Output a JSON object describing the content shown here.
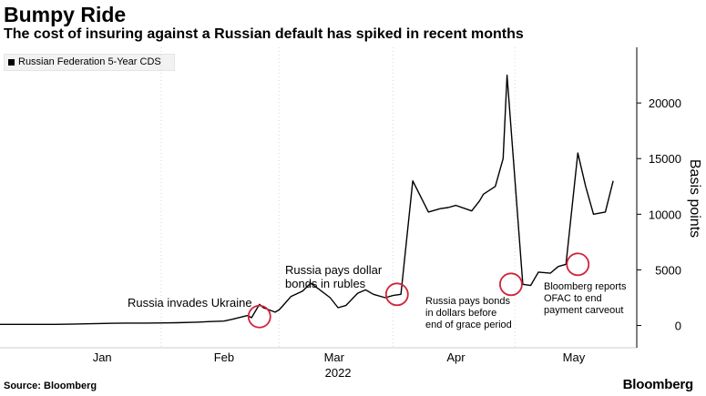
{
  "title": "Bumpy Ride",
  "subtitle": "The cost of insuring against a Russian default has spiked in recent months",
  "footer": {
    "source": "Source: Bloomberg",
    "logo": "Bloomberg"
  },
  "colors": {
    "line": "#000000",
    "highlight": "#d0243a",
    "grid": "#d8d8d8",
    "legend_bg": "#f2f2f2"
  },
  "chart_data": {
    "type": "line",
    "title": "Bumpy Ride",
    "subtitle": "The cost of insuring against a Russian default has spiked in recent months",
    "ylabel": "Basis points",
    "xlabel": "",
    "ylim": [
      -2000,
      25000
    ],
    "y_axis_side": "right",
    "yticks": [
      0,
      5000,
      10000,
      15000,
      20000
    ],
    "ytick_labels": [
      "0",
      "5000",
      "10000",
      "15000",
      "20000"
    ],
    "x_tick_labels": [
      {
        "label": "Jan",
        "date": "2022-01-15"
      },
      {
        "label": "Feb",
        "date": "2022-02-15"
      },
      {
        "label": "Mar",
        "date": "2022-03-15"
      },
      {
        "label": "Apr",
        "date": "2022-04-15"
      },
      {
        "label": "May",
        "date": "2022-05-15"
      }
    ],
    "year_label": "2022",
    "xlim": [
      "2021-12-20",
      "2022-05-31"
    ],
    "grid": "vertical",
    "legend": {
      "position": "top-left",
      "entries": [
        "Russian Federation 5-Year CDS"
      ]
    },
    "series": [
      {
        "name": "Russian Federation 5-Year CDS",
        "x": [
          "2021-12-20",
          "2021-12-27",
          "2022-01-03",
          "2022-01-07",
          "2022-01-11",
          "2022-01-14",
          "2022-01-18",
          "2022-01-21",
          "2022-01-26",
          "2022-01-31",
          "2022-02-03",
          "2022-02-08",
          "2022-02-11",
          "2022-02-15",
          "2022-02-17",
          "2022-02-21",
          "2022-02-22",
          "2022-02-24",
          "2022-02-25",
          "2022-02-28",
          "2022-03-01",
          "2022-03-02",
          "2022-03-04",
          "2022-03-07",
          "2022-03-09",
          "2022-03-11",
          "2022-03-14",
          "2022-03-16",
          "2022-03-18",
          "2022-03-21",
          "2022-03-23",
          "2022-03-25",
          "2022-03-28",
          "2022-03-30",
          "2022-04-01",
          "2022-04-04",
          "2022-04-06",
          "2022-04-08",
          "2022-04-11",
          "2022-04-13",
          "2022-04-15",
          "2022-04-19",
          "2022-04-21",
          "2022-04-22",
          "2022-04-25",
          "2022-04-27",
          "2022-04-28",
          "2022-05-02",
          "2022-05-04",
          "2022-05-05",
          "2022-05-06",
          "2022-05-09",
          "2022-05-11",
          "2022-05-13",
          "2022-05-16",
          "2022-05-18",
          "2022-05-20",
          "2022-05-23",
          "2022-05-25"
        ],
        "y": [
          100,
          100,
          100,
          120,
          150,
          180,
          200,
          220,
          220,
          230,
          250,
          300,
          350,
          400,
          550,
          900,
          700,
          1900,
          1600,
          1200,
          1400,
          1800,
          2600,
          3100,
          3800,
          3300,
          2500,
          1600,
          1800,
          2900,
          3200,
          2800,
          2500,
          2700,
          2800,
          13000,
          11600,
          10200,
          10500,
          10600,
          10800,
          10300,
          11200,
          11800,
          12500,
          15000,
          22500,
          3700,
          3600,
          4200,
          4800,
          4700,
          5300,
          5500,
          15500,
          12500,
          10000,
          10200,
          13000
        ]
      }
    ],
    "annotations": [
      {
        "text": [
          "Russia invades Ukraine"
        ],
        "date": "2022-02-24",
        "value": 800
      },
      {
        "text": [
          "Russia pays dollar",
          "bonds in rubles"
        ],
        "date": "2022-03-31",
        "value": 2800
      },
      {
        "text": [
          "Russia pays bonds",
          "in dollars before",
          "end of grace period"
        ],
        "date": "2022-04-29",
        "value": 3700
      },
      {
        "text": [
          "Bloomberg reports",
          "OFAC to end",
          "payment carveout"
        ],
        "date": "2022-05-16",
        "value": 5500
      }
    ]
  }
}
